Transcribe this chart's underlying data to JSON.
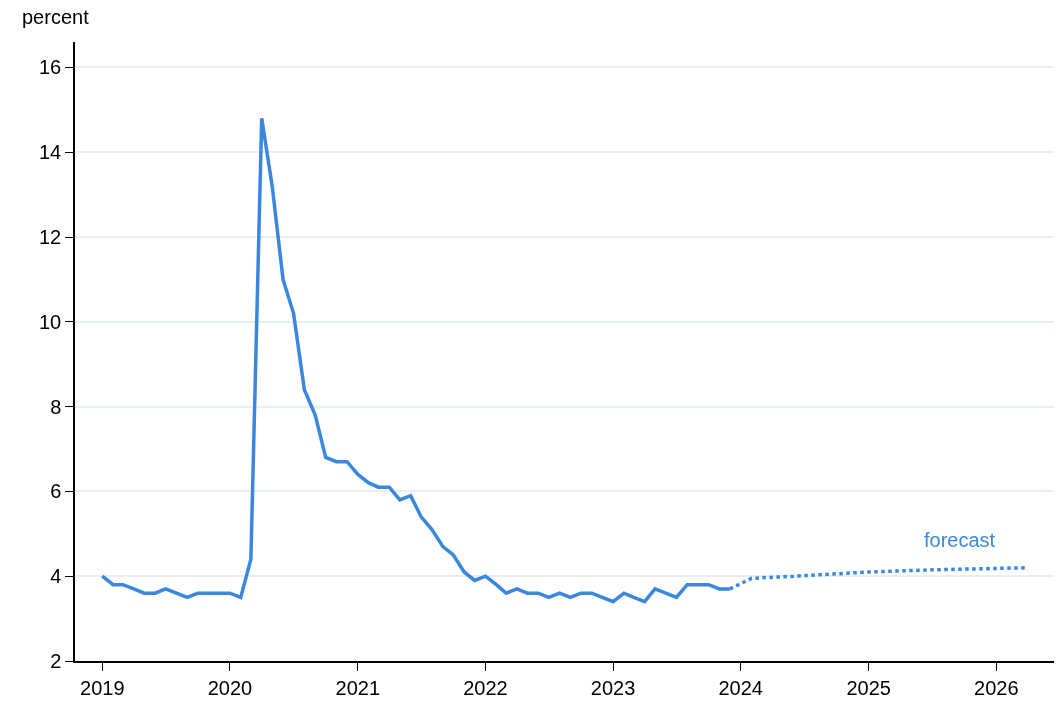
{
  "chart_data": {
    "type": "line",
    "ylabel": "percent",
    "series": [
      {
        "color": "#3b87e0",
        "line_style": "solid",
        "x": [
          "2019-01",
          "2019-02",
          "2019-03",
          "2019-04",
          "2019-05",
          "2019-06",
          "2019-07",
          "2019-08",
          "2019-09",
          "2019-10",
          "2019-11",
          "2019-12",
          "2020-01",
          "2020-02",
          "2020-03",
          "2020-04",
          "2020-05",
          "2020-06",
          "2020-07",
          "2020-08",
          "2020-09",
          "2020-10",
          "2020-11",
          "2020-12",
          "2021-01",
          "2021-02",
          "2021-03",
          "2021-04",
          "2021-05",
          "2021-06",
          "2021-07",
          "2021-08",
          "2021-09",
          "2021-10",
          "2021-11",
          "2021-12",
          "2022-01",
          "2022-02",
          "2022-03",
          "2022-04",
          "2022-05",
          "2022-06",
          "2022-07",
          "2022-08",
          "2022-09",
          "2022-10",
          "2022-11",
          "2022-12",
          "2023-01",
          "2023-02",
          "2023-03",
          "2023-04",
          "2023-05",
          "2023-06",
          "2023-07",
          "2023-08",
          "2023-09",
          "2023-10",
          "2023-11",
          "2023-12"
        ],
        "values": [
          4.0,
          3.8,
          3.8,
          3.7,
          3.6,
          3.6,
          3.7,
          3.6,
          3.5,
          3.6,
          3.6,
          3.6,
          3.6,
          3.5,
          4.4,
          14.8,
          13.2,
          11.0,
          10.2,
          8.4,
          7.8,
          6.8,
          6.7,
          6.7,
          6.4,
          6.2,
          6.1,
          6.1,
          5.8,
          5.9,
          5.4,
          5.1,
          4.7,
          4.5,
          4.1,
          3.9,
          4.0,
          3.8,
          3.6,
          3.7,
          3.6,
          3.6,
          3.5,
          3.6,
          3.5,
          3.6,
          3.6,
          3.5,
          3.4,
          3.6,
          3.5,
          3.4,
          3.7,
          3.6,
          3.5,
          3.8,
          3.8,
          3.8,
          3.7,
          3.7
        ]
      },
      {
        "color": "#3b87e0",
        "line_style": "dotted",
        "x": [
          "2023-12",
          "2024-02",
          "2024-06",
          "2025-01",
          "2025-07",
          "2026-04"
        ],
        "values": [
          3.7,
          3.95,
          4.0,
          4.1,
          4.15,
          4.2
        ]
      }
    ],
    "annotations": [
      "forecast"
    ],
    "xlim": [
      "2018-10-15",
      "2026-06-15"
    ],
    "xticks": [
      "2019",
      "2020",
      "2021",
      "2022",
      "2023",
      "2024",
      "2025",
      "2026"
    ],
    "ylim": [
      2,
      16.6
    ],
    "yticks": [
      2,
      4,
      6,
      8,
      10,
      12,
      14,
      16
    ],
    "grid": "y",
    "marker": "none"
  }
}
